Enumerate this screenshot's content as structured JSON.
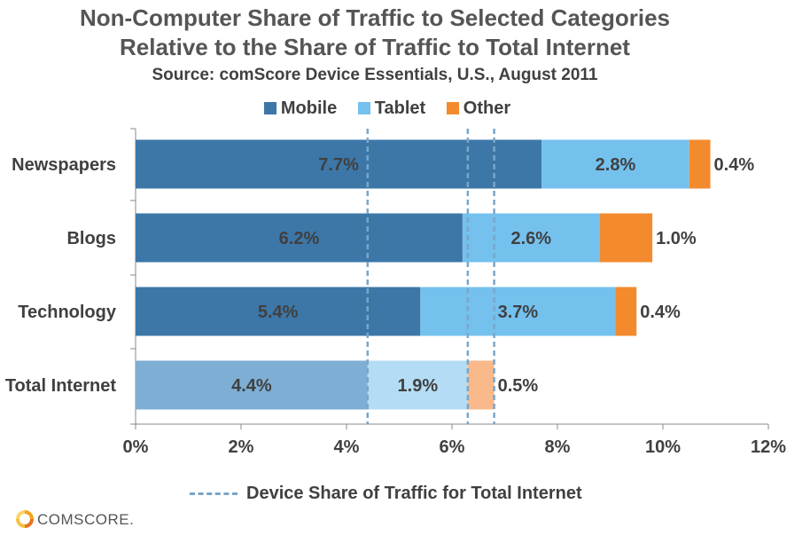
{
  "chart_data": {
    "type": "bar",
    "orientation": "horizontal",
    "stacked": true,
    "title": "Non-Computer Share of Traffic to Selected Categories",
    "title_line2": "Relative to the Share of Traffic to Total Internet",
    "subtitle": "Source: comScore Device Essentials, U.S., August 2011",
    "categories": [
      "Newspapers",
      "Blogs",
      "Technology",
      "Total Internet"
    ],
    "series": [
      {
        "name": "Mobile",
        "values": [
          7.7,
          6.2,
          5.4,
          4.4
        ],
        "labels": [
          "7.7%",
          "6.2%",
          "5.4%",
          "4.4%"
        ],
        "color": "#3c77a8",
        "color_total": "#7eaed3"
      },
      {
        "name": "Tablet",
        "values": [
          2.8,
          2.6,
          3.7,
          1.9
        ],
        "labels": [
          "2.8%",
          "2.6%",
          "3.7%",
          "1.9%"
        ],
        "color": "#74c1ee",
        "color_total": "#b4ddf5"
      },
      {
        "name": "Other",
        "values": [
          0.4,
          1.0,
          0.4,
          0.5
        ],
        "labels": [
          "0.4%",
          "1.0%",
          "0.4%",
          "0.5%"
        ],
        "color": "#f38a2e",
        "color_total": "#f9b98a"
      }
    ],
    "xlim": [
      0,
      12
    ],
    "xticks": [
      "0%",
      "2%",
      "4%",
      "6%",
      "8%",
      "10%",
      "12%"
    ],
    "reference_lines": [
      4.4,
      6.3,
      6.8
    ],
    "reference_label": "Device Share of Traffic  for Total Internet",
    "reference_color": "#7aa6c9",
    "legend_position": "top",
    "grid": false
  },
  "logo": {
    "text": "comScore",
    "display": "COMSCORE."
  }
}
